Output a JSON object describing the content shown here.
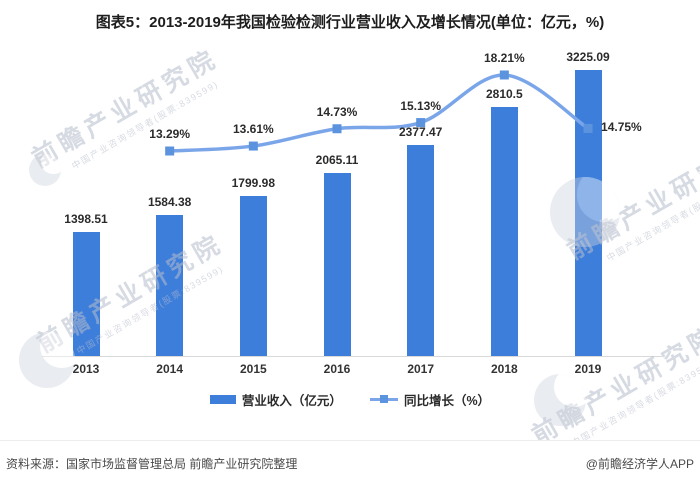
{
  "chart_data": {
    "type": "combo",
    "title": "图表5：2013-2019年我国检验检测行业营业收入及增长情况(单位：亿元，%)",
    "categories": [
      "2013",
      "2014",
      "2015",
      "2016",
      "2017",
      "2018",
      "2019"
    ],
    "series": [
      {
        "name": "营业收入（亿元）",
        "type": "bar",
        "color": "#3E7EDB",
        "categories": [
          "2013",
          "2014",
          "2015",
          "2016",
          "2017",
          "2018",
          "2019"
        ],
        "values": [
          1398.51,
          1584.38,
          1799.98,
          2065.11,
          2377.47,
          2810.5,
          3225.09
        ]
      },
      {
        "name": "同比增长（%）",
        "type": "line",
        "color": "#7AA6E9",
        "marker_color": "#5C93DF",
        "categories": [
          "2014",
          "2015",
          "2016",
          "2017",
          "2018",
          "2019"
        ],
        "values": [
          13.29,
          13.61,
          14.73,
          15.13,
          18.21,
          14.75
        ]
      }
    ],
    "value_labels": true,
    "legend_position": "bottom",
    "axes": {
      "y_axis_visible": false,
      "x_axis_line_color": "#d9d9d9"
    }
  },
  "watermark": {
    "big": "前瞻产业研究院",
    "small": "中国产业咨询领导者(股票:839599)"
  },
  "footer": {
    "source": "资料来源：国家市场监督管理总局 前瞻产业研究院整理",
    "credit": "@前瞻经济学人APP"
  }
}
